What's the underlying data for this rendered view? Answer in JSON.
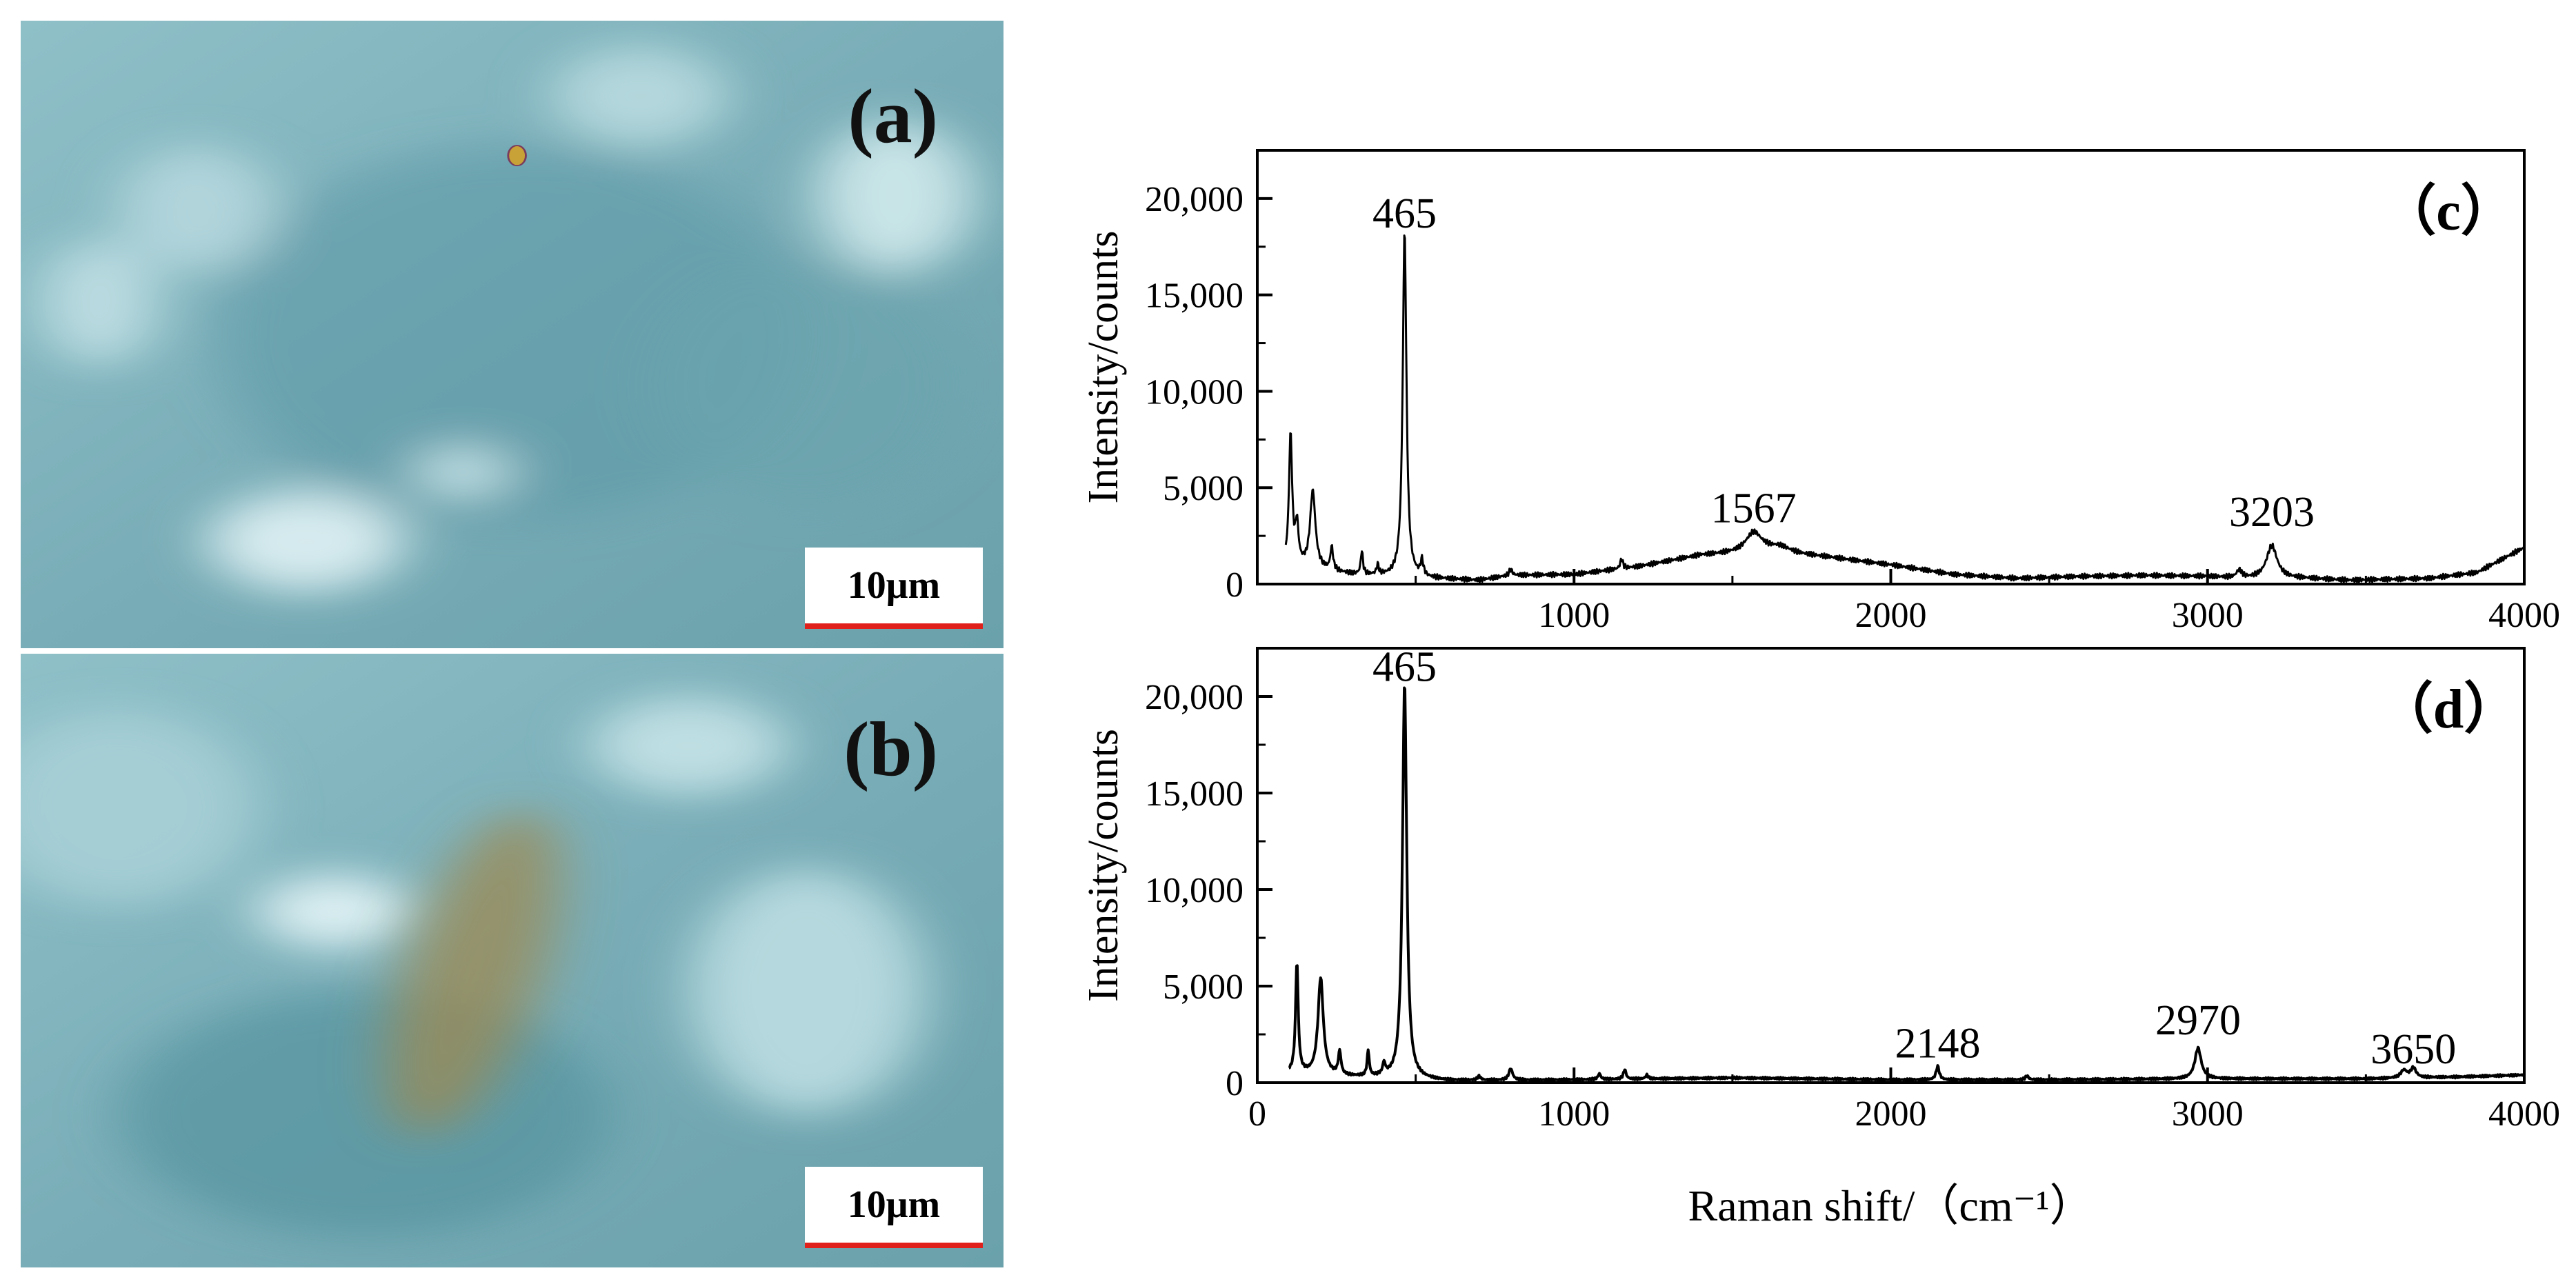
{
  "images": [
    {
      "label": "(a)",
      "scale": "10μm",
      "fg": [
        [
          "#cfe9ec",
          0.45,
          0.72,
          0.05,
          0.04
        ],
        [
          "#b8d9df",
          0.18,
          0.3,
          0.08,
          0.1
        ],
        [
          "#e6f6f8",
          0.29,
          0.83,
          0.1,
          0.08
        ],
        [
          "#d6eef0",
          0.89,
          0.28,
          0.08,
          0.12
        ],
        [
          "#bcdde2",
          0.63,
          0.12,
          0.09,
          0.08
        ],
        [
          "#c3e2e6",
          0.08,
          0.45,
          0.06,
          0.1
        ]
      ],
      "dark": [
        [
          "#5e9aa6",
          0.5,
          0.5,
          0.3,
          0.3
        ],
        [
          "#6aa4ae",
          0.8,
          0.58,
          0.16,
          0.2
        ]
      ],
      "speck": "#c8a236"
    },
    {
      "label": "(b)",
      "scale": "10μm",
      "fg": [
        [
          "#eaf8fa",
          0.32,
          0.42,
          0.08,
          0.06
        ],
        [
          "#bfe0e5",
          0.8,
          0.55,
          0.12,
          0.2
        ],
        [
          "#a9d0d7",
          0.1,
          0.25,
          0.14,
          0.16
        ],
        [
          "#c9e6ea",
          0.68,
          0.15,
          0.1,
          0.08
        ]
      ],
      "dark": [
        [
          "#4f8f9b",
          0.35,
          0.75,
          0.25,
          0.2
        ]
      ],
      "blob": "#9c8a52"
    }
  ],
  "chart_data": [
    {
      "type": "line",
      "panel_label": "（c）",
      "xlim": [
        0,
        4000
      ],
      "ylim": [
        0,
        22500
      ],
      "xticks": [
        "1000",
        "2000",
        "3000",
        "4000"
      ],
      "yticks": [
        "0",
        "5,000",
        "10,000",
        "15,000",
        "20,000"
      ],
      "ylabel": "Intensity/counts",
      "peak_labels": [
        {
          "x": 465,
          "y": 18500,
          "text": "465"
        },
        {
          "x": 1567,
          "y": 3200,
          "text": "1567"
        },
        {
          "x": 3203,
          "y": 3000,
          "text": "3203"
        }
      ],
      "baseline": [
        [
          90,
          1000
        ],
        [
          300,
          500
        ],
        [
          520,
          300
        ],
        [
          700,
          200
        ],
        [
          800,
          450
        ],
        [
          1000,
          500
        ],
        [
          1200,
          900
        ],
        [
          1400,
          1500
        ],
        [
          1600,
          1700
        ],
        [
          1800,
          1400
        ],
        [
          2000,
          1000
        ],
        [
          2200,
          500
        ],
        [
          2400,
          300
        ],
        [
          2600,
          400
        ],
        [
          2800,
          450
        ],
        [
          3000,
          400
        ],
        [
          3100,
          300
        ],
        [
          3300,
          300
        ],
        [
          3450,
          200
        ],
        [
          3700,
          300
        ],
        [
          3850,
          600
        ],
        [
          4000,
          1900
        ]
      ],
      "peaks": [
        [
          105,
          6700,
          6
        ],
        [
          125,
          2000,
          6
        ],
        [
          175,
          4000,
          10
        ],
        [
          235,
          1200,
          5
        ],
        [
          330,
          1200,
          4
        ],
        [
          380,
          500,
          4
        ],
        [
          465,
          18000,
          7
        ],
        [
          520,
          800,
          5
        ],
        [
          800,
          300,
          6
        ],
        [
          1150,
          500,
          5
        ],
        [
          1567,
          1000,
          30
        ],
        [
          1650,
          300,
          40
        ],
        [
          3100,
          400,
          10
        ],
        [
          3203,
          1700,
          20
        ]
      ]
    },
    {
      "type": "line",
      "panel_label": "（d）",
      "xlim": [
        0,
        4000
      ],
      "ylim": [
        0,
        22500
      ],
      "xticks": [
        "0",
        "1000",
        "2000",
        "3000",
        "4000"
      ],
      "yticks": [
        "0",
        "5,000",
        "10,000",
        "15,000",
        "20,000"
      ],
      "ylabel": "Intensity/counts",
      "xlabel": "Raman shift/（cm⁻¹）",
      "peak_labels": [
        {
          "x": 465,
          "y": 20800,
          "text": "465"
        },
        {
          "x": 2148,
          "y": 1300,
          "text": "2148"
        },
        {
          "x": 2970,
          "y": 2500,
          "text": "2970"
        },
        {
          "x": 3650,
          "y": 1000,
          "text": "3650"
        }
      ],
      "baseline": [
        [
          100,
          500
        ],
        [
          300,
          300
        ],
        [
          600,
          100
        ],
        [
          1000,
          150
        ],
        [
          1500,
          250
        ],
        [
          2000,
          150
        ],
        [
          2500,
          150
        ],
        [
          3000,
          200
        ],
        [
          3500,
          200
        ],
        [
          3800,
          300
        ],
        [
          4000,
          400
        ]
      ],
      "peaks": [
        [
          125,
          5700,
          5
        ],
        [
          200,
          5000,
          10
        ],
        [
          260,
          1200,
          5
        ],
        [
          350,
          1300,
          4
        ],
        [
          400,
          600,
          5
        ],
        [
          465,
          20500,
          8
        ],
        [
          700,
          200,
          6
        ],
        [
          800,
          600,
          7
        ],
        [
          1080,
          300,
          5
        ],
        [
          1160,
          500,
          5
        ],
        [
          1230,
          200,
          5
        ],
        [
          2148,
          700,
          6
        ],
        [
          2430,
          200,
          6
        ],
        [
          2970,
          1600,
          12
        ],
        [
          3620,
          400,
          12
        ],
        [
          3650,
          500,
          10
        ]
      ]
    }
  ]
}
